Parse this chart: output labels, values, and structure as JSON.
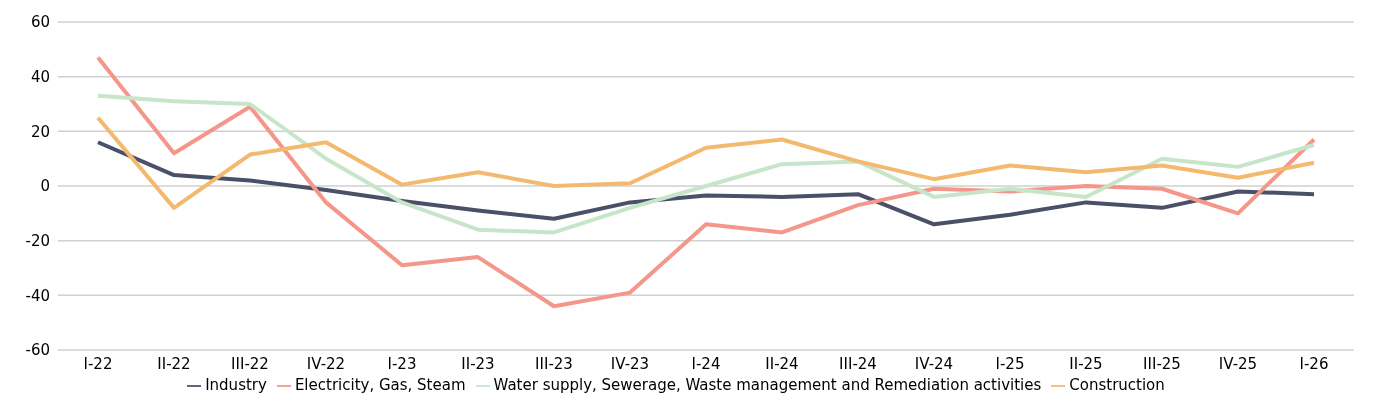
{
  "chart_data": {
    "type": "line",
    "categories": [
      "I-22",
      "II-22",
      "III-22",
      "IV-22",
      "I-23",
      "II-23",
      "III-23",
      "IV-23",
      "I-24",
      "II-24",
      "III-24",
      "IV-24",
      "I-25",
      "II-25",
      "III-25",
      "IV-25",
      "I-26"
    ],
    "series": [
      {
        "name": "Industry",
        "color": "#4a5068",
        "values": [
          16,
          4,
          2,
          -1.5,
          -5.5,
          -9,
          -12,
          -6,
          -3.5,
          -4,
          -3,
          -14,
          -10.5,
          -6,
          -8,
          -2,
          -3
        ]
      },
      {
        "name": "Electricity, Gas, Steam",
        "color": "#f4978a",
        "values": [
          47,
          12,
          29,
          -6,
          -29,
          -26,
          -44,
          -39,
          -14,
          -17,
          -7,
          -1,
          -2,
          0,
          -1,
          -10,
          17
        ]
      },
      {
        "name": "Water supply, Sewerage, Waste management and Remediation activities",
        "color": "#c7e5c8",
        "values": [
          33,
          31,
          30,
          10,
          -6,
          -16,
          -17,
          -8,
          0,
          8,
          9,
          -4,
          -1,
          -4,
          10,
          7,
          15
        ]
      },
      {
        "name": "Construction",
        "color": "#f3b96e",
        "values": [
          25,
          -8,
          11.5,
          16,
          0.5,
          5,
          0,
          1,
          14,
          17,
          9,
          2.5,
          7.5,
          5,
          7.5,
          3,
          8.5
        ]
      }
    ],
    "ylim": [
      -60,
      60
    ],
    "yticks": [
      -60,
      -40,
      -20,
      0,
      20,
      40,
      60
    ],
    "grid": "y",
    "legend": "bottom",
    "marker": "none",
    "line_style": "solid"
  }
}
